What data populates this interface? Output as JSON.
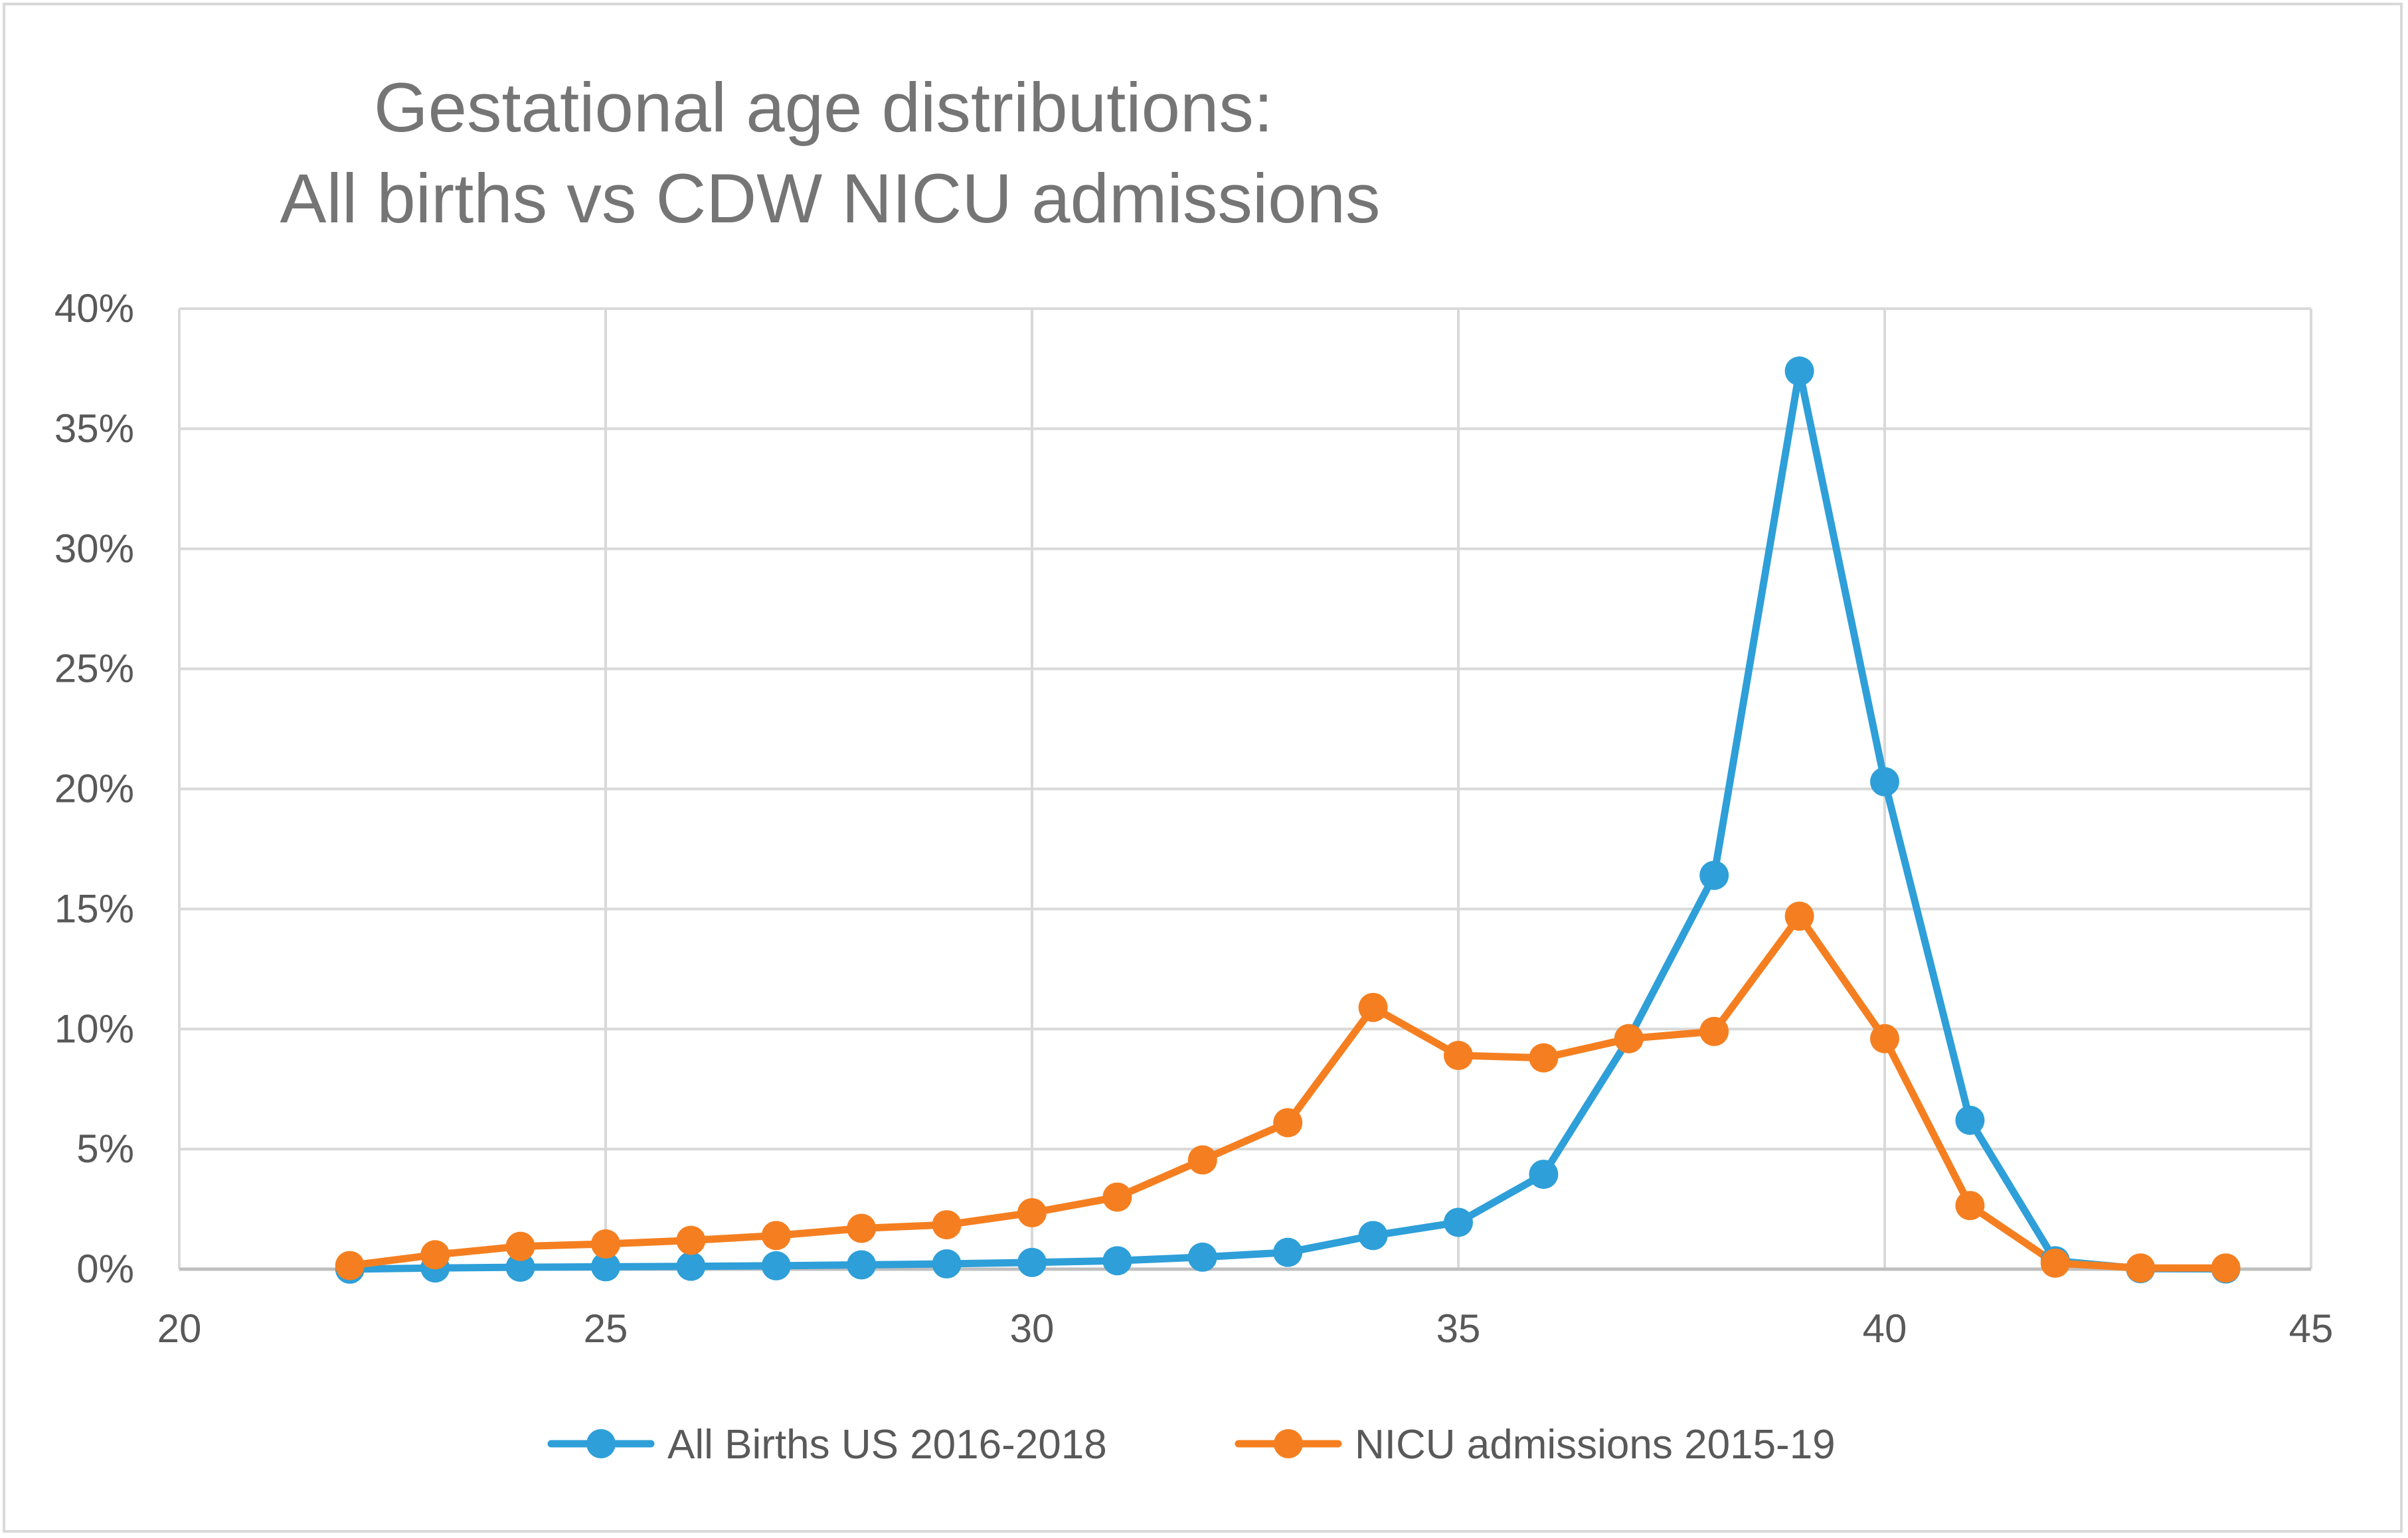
{
  "chart_data": {
    "type": "line",
    "title": "Gestational age distributions:",
    "subtitle": "All births vs CDW NICU admissions",
    "xlabel": "",
    "ylabel": "",
    "xlim": [
      20,
      45
    ],
    "ylim": [
      0,
      40
    ],
    "x_ticks": [
      20,
      25,
      30,
      35,
      40,
      45
    ],
    "x_tick_labels": [
      "20",
      "25",
      "30",
      "35",
      "40",
      "45"
    ],
    "y_ticks": [
      0,
      5,
      10,
      15,
      20,
      25,
      30,
      35,
      40
    ],
    "y_tick_labels": [
      "0%",
      "5%",
      "10%",
      "15%",
      "20%",
      "25%",
      "30%",
      "35%",
      "40%"
    ],
    "grid": true,
    "legend_position": "bottom",
    "series": [
      {
        "name": "All Births US 2016-2018",
        "color": "#2e9fd8",
        "x": [
          22,
          23,
          24,
          25,
          26,
          27,
          28,
          29,
          30,
          31,
          32,
          33,
          34,
          35,
          36,
          37,
          38,
          39,
          40,
          41,
          42,
          43,
          44
        ],
        "values": [
          0.0,
          0.05,
          0.08,
          0.1,
          0.12,
          0.14,
          0.18,
          0.22,
          0.28,
          0.35,
          0.5,
          0.7,
          1.4,
          1.95,
          3.95,
          9.6,
          16.4,
          37.4,
          20.3,
          6.2,
          0.35,
          0.02,
          0.01
        ]
      },
      {
        "name": "NICU admissions 2015-19",
        "color": "#f57f20",
        "x": [
          22,
          23,
          24,
          25,
          26,
          27,
          28,
          29,
          30,
          31,
          32,
          33,
          34,
          35,
          36,
          37,
          38,
          39,
          40,
          41,
          42,
          43,
          44
        ],
        "values": [
          0.15,
          0.6,
          0.95,
          1.05,
          1.2,
          1.4,
          1.7,
          1.85,
          2.35,
          3.0,
          4.55,
          6.1,
          10.9,
          8.9,
          8.8,
          9.6,
          9.9,
          14.7,
          9.6,
          2.65,
          0.25,
          0.05,
          0.05
        ]
      }
    ]
  }
}
